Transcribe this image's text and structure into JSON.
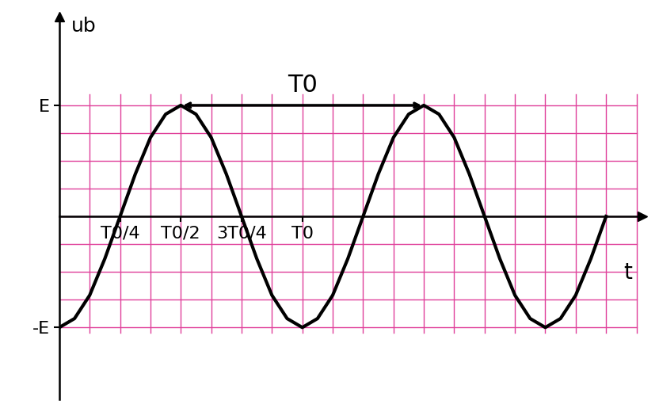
{
  "chart_data": {
    "type": "line",
    "x_label": "t",
    "y_label": "ub",
    "x": [
      0,
      0.0625,
      0.125,
      0.1875,
      0.25,
      0.3125,
      0.375,
      0.4375,
      0.5,
      0.5625,
      0.625,
      0.6875,
      0.75,
      0.8125,
      0.875,
      0.9375,
      1,
      1.0625,
      1.125,
      1.1875,
      1.25,
      1.3125,
      1.375,
      1.4375,
      1.5,
      1.5625,
      1.625,
      1.6875,
      1.75,
      1.8125,
      1.875,
      1.9375,
      2,
      2.0625,
      2.125,
      2.1875,
      2.25
    ],
    "values": [
      -1,
      -0.92,
      -0.71,
      -0.38,
      0,
      0.38,
      0.71,
      0.92,
      1,
      0.92,
      0.71,
      0.38,
      0,
      -0.38,
      -0.71,
      -0.92,
      -1,
      -0.92,
      -0.71,
      -0.38,
      0,
      0.38,
      0.71,
      0.92,
      1,
      0.92,
      0.71,
      0.38,
      0,
      -0.38,
      -0.71,
      -0.92,
      -1,
      -0.92,
      -0.71,
      -0.38,
      0
    ],
    "color": "#000000",
    "xlim": [
      0,
      2.4
    ],
    "ylim": [
      -1.65,
      1.8
    ],
    "xticks": [
      {
        "value": 0.25,
        "label": "T0/4"
      },
      {
        "value": 0.5,
        "label": "T0/2"
      },
      {
        "value": 0.75,
        "label": "3T0/4"
      },
      {
        "value": 1,
        "label": "T0"
      }
    ],
    "yticks": [
      {
        "value": -1,
        "label": "-E"
      },
      {
        "value": 1,
        "label": "E"
      }
    ],
    "grid": true,
    "annotations": [
      {
        "text": "T0",
        "x_start": 0.5,
        "x_end": 1.5,
        "y": 1
      }
    ]
  }
}
